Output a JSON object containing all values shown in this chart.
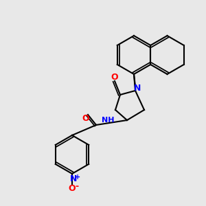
{
  "background_color": "#e8e8e8",
  "bond_color": "#000000",
  "bond_width": 1.5,
  "atom_colors": {
    "N": "#0000ff",
    "O": "#ff0000",
    "C": "#000000",
    "N+": "#0000ff",
    "O-": "#ff0000"
  },
  "fig_width": 3.0,
  "fig_height": 3.0,
  "dpi": 100
}
